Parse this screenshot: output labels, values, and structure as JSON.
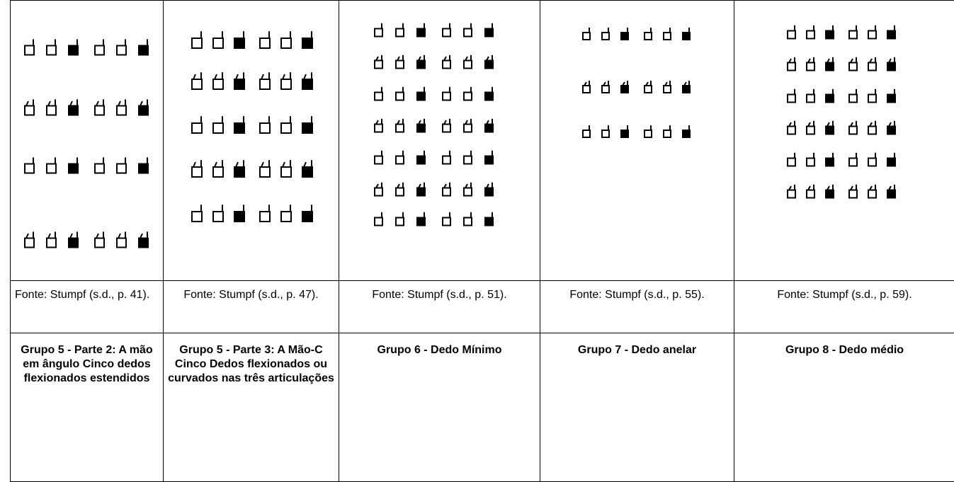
{
  "table": {
    "sources": [
      "Fonte: Stumpf (s.d., p. 41).",
      "Fonte: Stumpf (s.d., p. 47).",
      "Fonte: Stumpf (s.d., p. 51).",
      "Fonte: Stumpf (s.d., p. 55).",
      "Fonte: Stumpf (s.d., p. 59)."
    ],
    "groups": [
      "Grupo 5 - Parte 2: A mão em ângulo Cinco dedos flexionados estendidos",
      "Grupo 5 - Parte 3: A Mão-C Cinco Dedos flexionados ou curvados nas três articulações",
      "Grupo 6 - Dedo Mínimo",
      "Grupo 7 - Dedo anelar",
      "Grupo 8 - Dedo médio"
    ]
  }
}
